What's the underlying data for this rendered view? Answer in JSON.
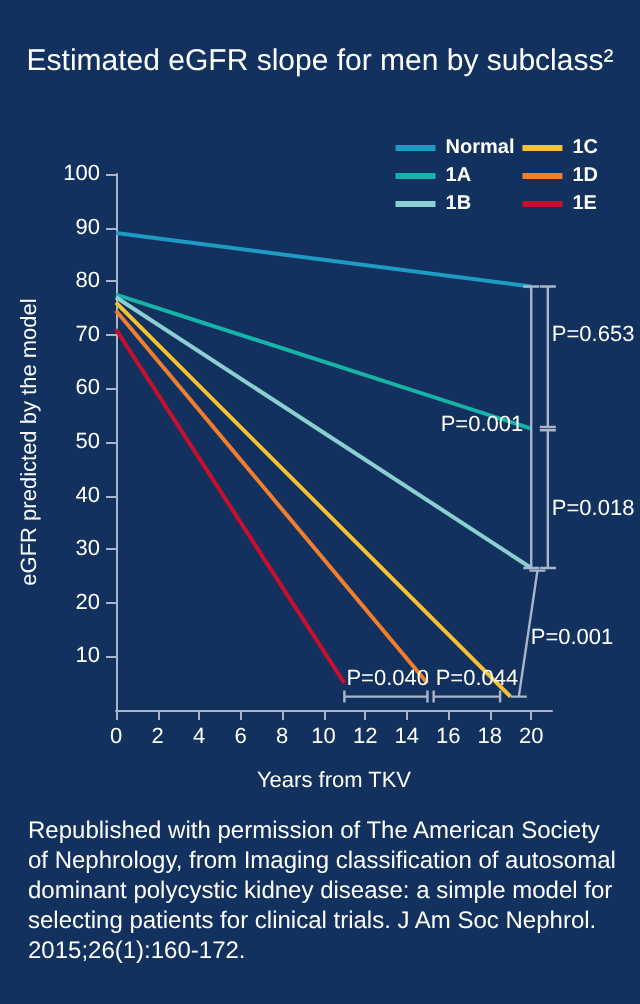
{
  "chart_data": {
    "type": "line",
    "title": "Estimated eGFR slope for men by subclass²",
    "xlabel": "Years from TKV",
    "ylabel": "eGFR predicted by the model",
    "xlim": [
      0,
      21
    ],
    "xticks": [
      0,
      2,
      4,
      6,
      8,
      10,
      12,
      14,
      16,
      18,
      20
    ],
    "ylim": [
      0,
      100
    ],
    "yticks": [
      10,
      20,
      30,
      40,
      50,
      60,
      70,
      80,
      90,
      100
    ],
    "grid": false,
    "legend": "top right",
    "marker": "none",
    "line_style": "solid",
    "series": [
      {
        "name": "Normal",
        "color": "#1d9bc4",
        "x": [
          0,
          20
        ],
        "values": [
          89,
          79
        ]
      },
      {
        "name": "1A",
        "color": "#17b3a6",
        "x": [
          0,
          20
        ],
        "values": [
          77.5,
          52.5
        ]
      },
      {
        "name": "1B",
        "color": "#8ccfd0",
        "x": [
          0,
          20
        ],
        "values": [
          77,
          26.5
        ]
      },
      {
        "name": "1C",
        "color": "#f6c232",
        "x": [
          0,
          19
        ],
        "values": [
          76,
          2.5
        ]
      },
      {
        "name": "1D",
        "color": "#f07e2b",
        "x": [
          0,
          15
        ],
        "values": [
          74.5,
          5
        ]
      },
      {
        "name": "1E",
        "color": "#c8102e",
        "x": [
          0,
          11
        ],
        "values": [
          71,
          5
        ]
      }
    ],
    "annotations": [
      "P=0.653",
      "P=0.001",
      "P=0.018",
      "P=0.001",
      "P=0.040",
      "P=0.044",
      "Republished with permission of The American Society of Nephrology, from Imaging classification of autosomal dominant polycystic kidney disease: a simple model for selecting patients for clinical trials. J Am Soc Nephrol. 2015;26(1):160-172."
    ]
  }
}
